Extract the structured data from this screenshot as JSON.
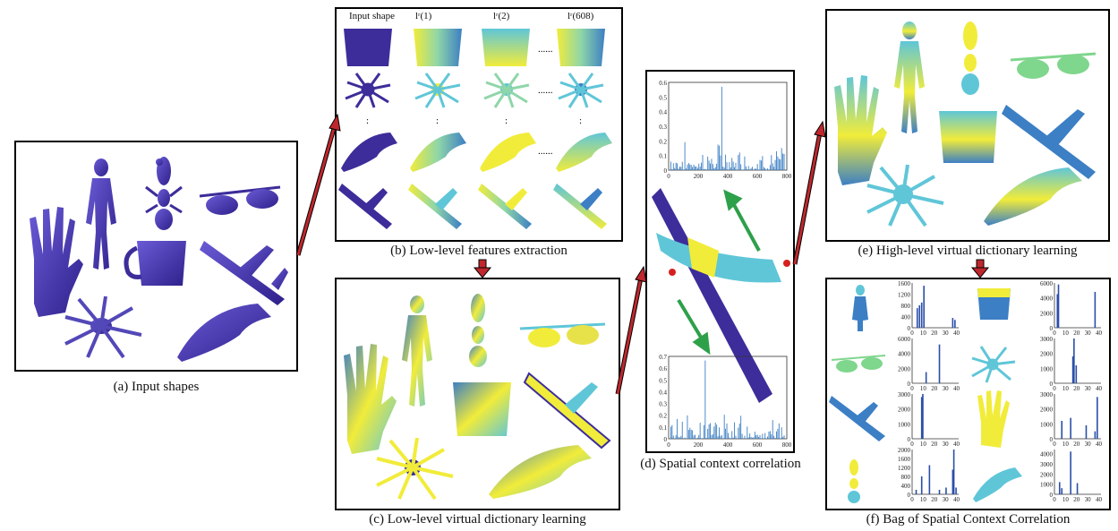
{
  "panels": {
    "a": {
      "caption": "(a) Input shapes"
    },
    "b": {
      "caption": "(b) Low-level features extraction",
      "header_input": "Input shape",
      "header_1": "lʳ(1)",
      "header_2": "lʳ(2)",
      "header_3": "lʳ(608)",
      "dots": "......",
      "vdots": ":"
    },
    "c": {
      "caption": "(c) Low-level virtual dictionary learning"
    },
    "d": {
      "caption": "(d) Spatial context correlation",
      "top_yticks": [
        "0.6",
        "0.5",
        "0.4",
        "0.3",
        "0.2",
        "0.1",
        "0"
      ],
      "top_xticks": [
        "0",
        "200",
        "400",
        "600",
        "800"
      ],
      "bottom_yticks": [
        "0.7",
        "0.6",
        "0.5",
        "0.4",
        "0.3",
        "0.2",
        "0.1",
        "0"
      ],
      "bottom_xticks": [
        "0",
        "200",
        "400",
        "600",
        "800"
      ]
    },
    "e": {
      "caption": "(e) High-level virtual dictionary learning"
    },
    "f": {
      "caption": "(f) Bag of Spatial Context Correlation",
      "xticks": [
        "0",
        "10",
        "20",
        "30",
        "40"
      ],
      "charts": [
        {
          "yticks": [
            "1600",
            "1200",
            "800",
            "400",
            "0"
          ],
          "ymax": 1600,
          "bars": [
            [
              4,
              700
            ],
            [
              6,
              800
            ],
            [
              8,
              900
            ],
            [
              10,
              1500
            ],
            [
              36,
              350
            ],
            [
              38,
              280
            ]
          ]
        },
        {
          "yticks": [
            "6000",
            "4000",
            "2000",
            "0"
          ],
          "ymax": 6000,
          "bars": [
            [
              2,
              4500
            ],
            [
              3,
              5800
            ],
            [
              36,
              4800
            ]
          ]
        },
        {
          "yticks": [
            "6000",
            "4000",
            "2000",
            "0"
          ],
          "ymax": 6000,
          "bars": [
            [
              12,
              1500
            ],
            [
              24,
              5200
            ]
          ]
        },
        {
          "yticks": [
            "3000",
            "2000",
            "1000",
            "0"
          ],
          "ymax": 3000,
          "bars": [
            [
              16,
              1800
            ],
            [
              17,
              3000
            ],
            [
              19,
              1200
            ]
          ]
        },
        {
          "yticks": [
            "3000",
            "2000",
            "1000",
            "0"
          ],
          "ymax": 3000,
          "bars": [
            [
              8,
              2800
            ],
            [
              9,
              3000
            ]
          ]
        },
        {
          "yticks": [
            "3000",
            "2000",
            "1000",
            "0"
          ],
          "ymax": 3000,
          "bars": [
            [
              6,
              1200
            ],
            [
              14,
              1400
            ],
            [
              28,
              900
            ],
            [
              36,
              500
            ],
            [
              38,
              2800
            ]
          ]
        },
        {
          "yticks": [
            "2000",
            "1600",
            "1200",
            "800",
            "400",
            "0"
          ],
          "ymax": 2000,
          "bars": [
            [
              3,
              200
            ],
            [
              8,
              800
            ],
            [
              15,
              1300
            ],
            [
              24,
              200
            ],
            [
              30,
              300
            ],
            [
              36,
              1100
            ],
            [
              37,
              2000
            ],
            [
              39,
              300
            ]
          ]
        },
        {
          "yticks": [
            "4000",
            "3000",
            "2000",
            "1000",
            "0"
          ],
          "ymax": 4400,
          "bars": [
            [
              4,
              1200
            ],
            [
              6,
              600
            ],
            [
              14,
              4200
            ],
            [
              20,
              1100
            ]
          ]
        }
      ]
    }
  },
  "colors": {
    "purple": "#3c2d9a",
    "yellow": "#f1ec3a",
    "cyan": "#5fc6d8",
    "blue": "#3c7fc4",
    "green": "#7fd68d",
    "arrow_red": "#c0272d",
    "arrow_green": "#2ea04a",
    "bar": "#2a4fa8"
  }
}
